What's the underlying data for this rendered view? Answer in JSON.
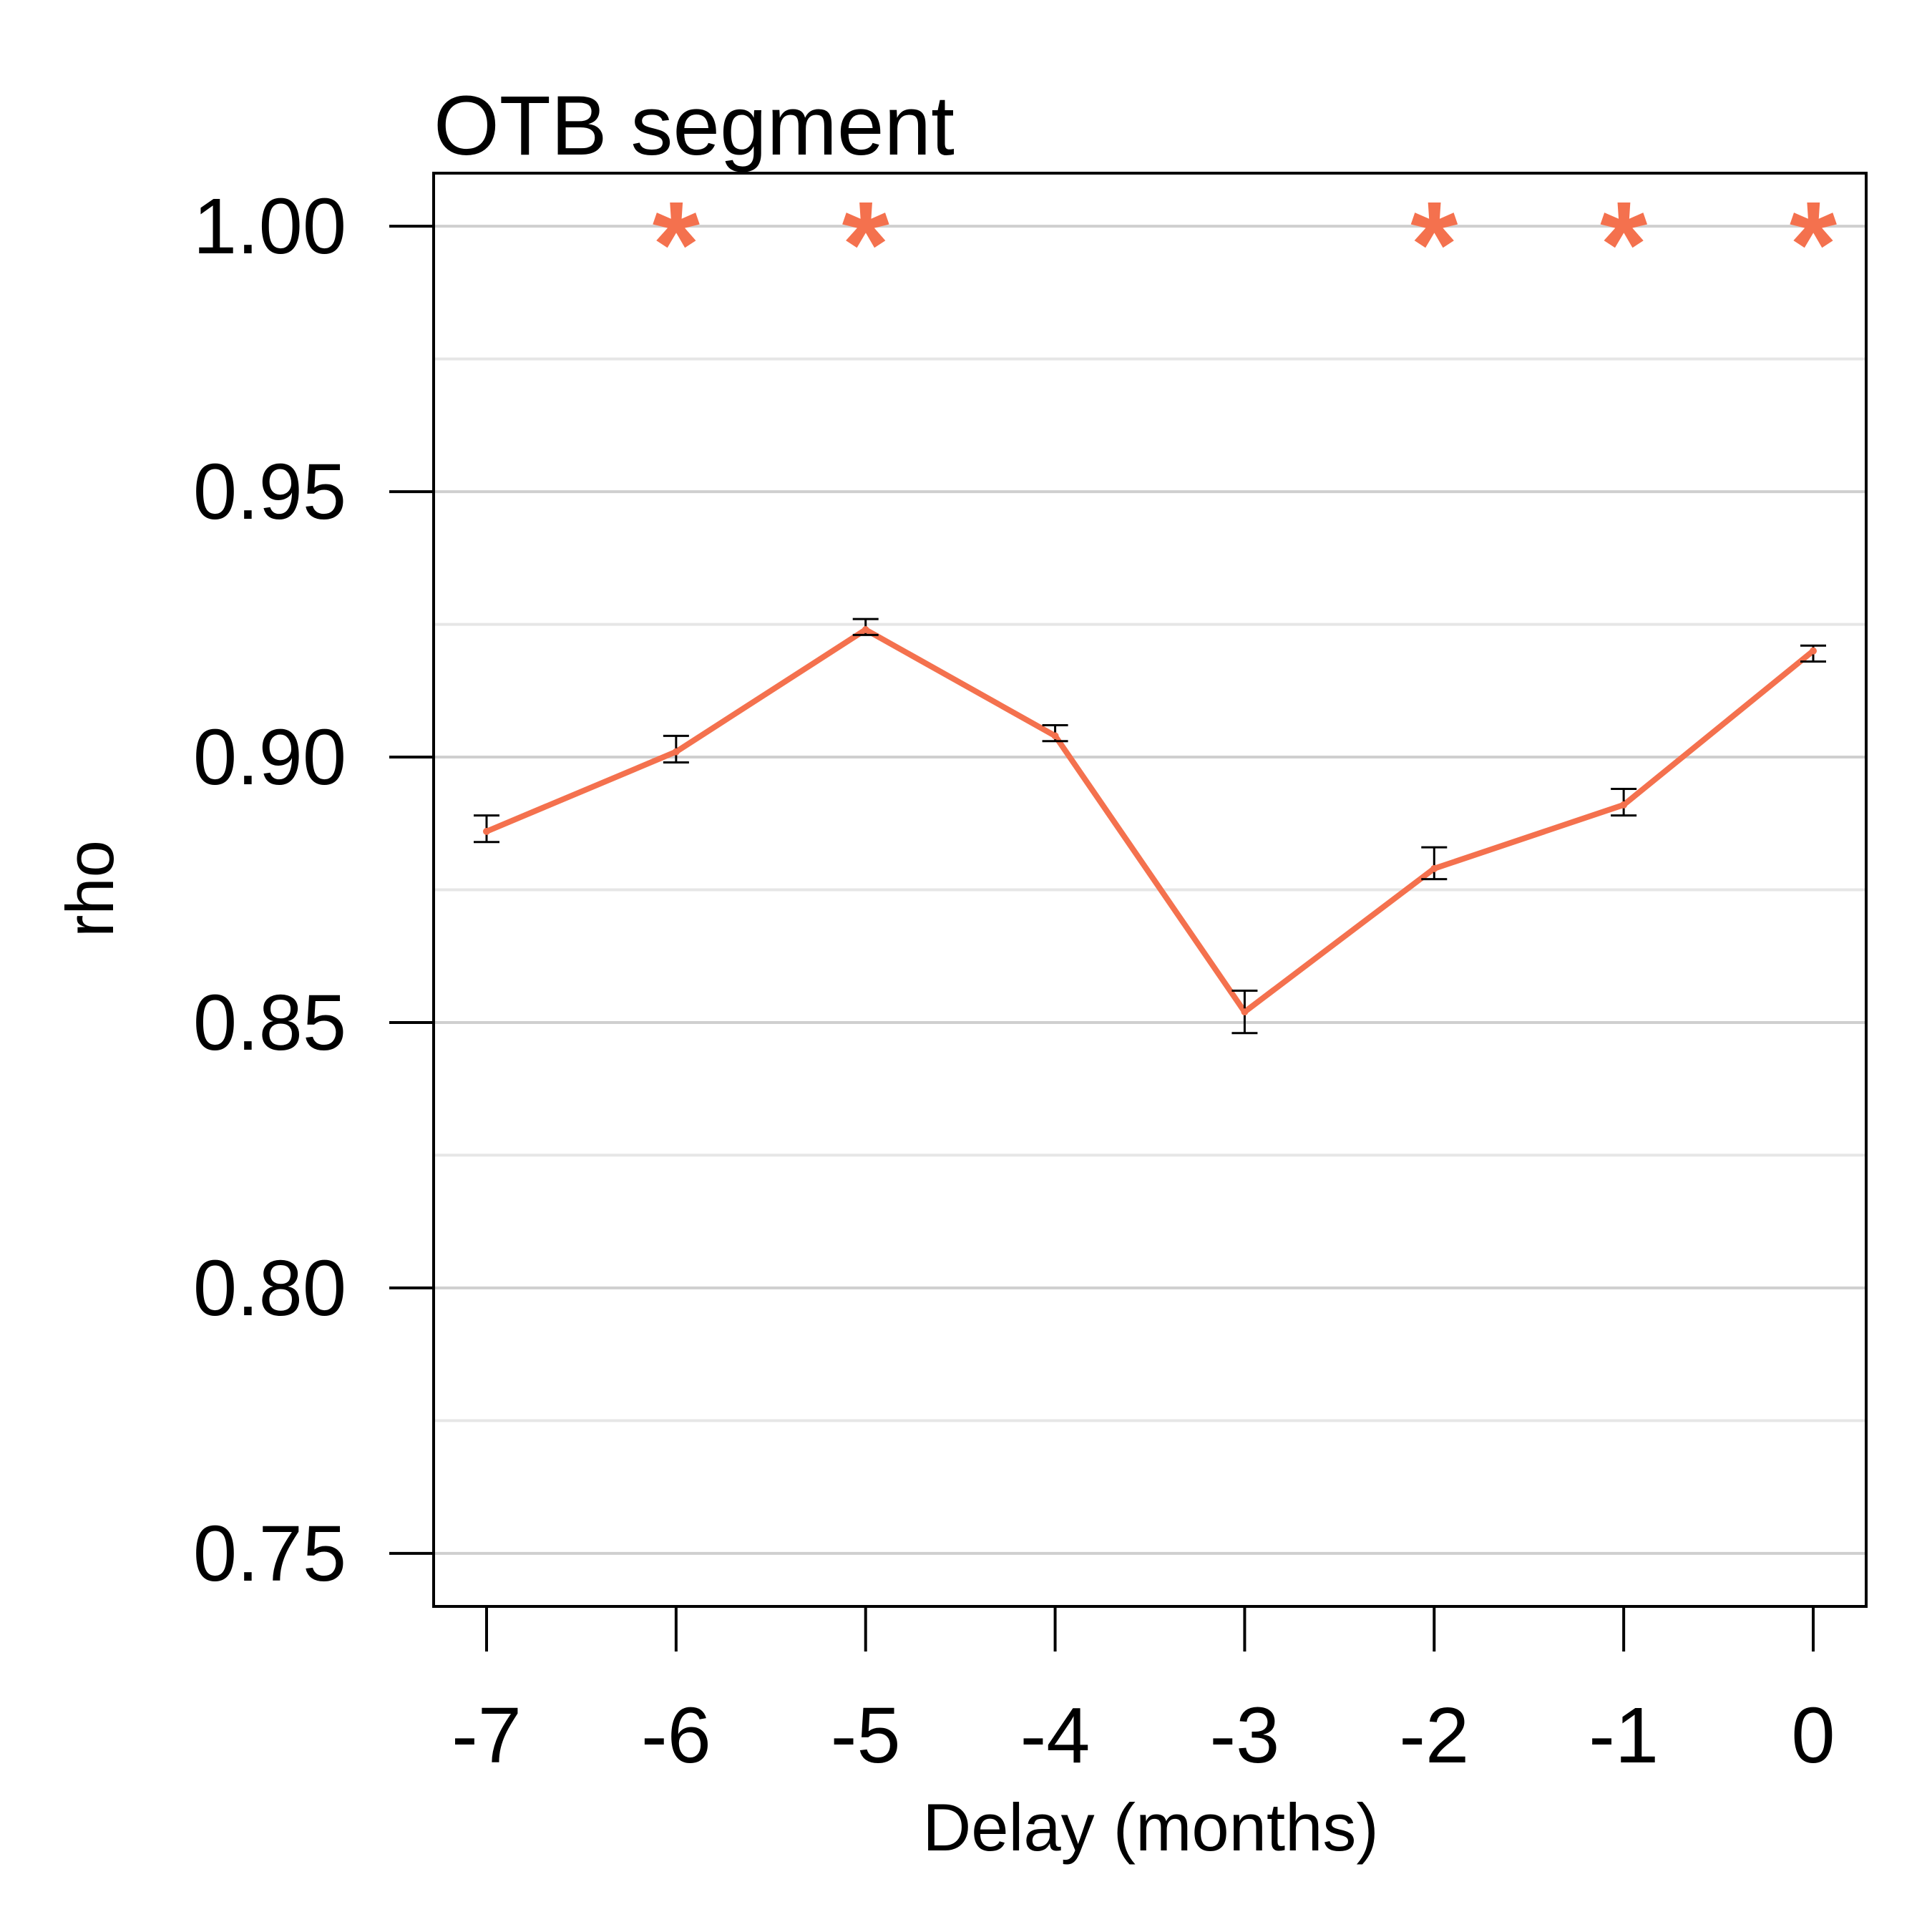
{
  "chart_data": {
    "type": "line",
    "title": "OTB segment",
    "xlabel": "Delay (months)",
    "ylabel": "rho",
    "x": [
      -7,
      -6,
      -5,
      -4,
      -3,
      -2,
      -1,
      0
    ],
    "x_tick_labels": [
      "-7",
      "-6",
      "-5",
      "-4",
      "-3",
      "-2",
      "-1",
      "0"
    ],
    "ylim": [
      0.74,
      1.01
    ],
    "y_ticks": [
      0.75,
      0.8,
      0.85,
      0.9,
      0.95,
      1.0
    ],
    "y_tick_labels": [
      "0.75",
      "0.80",
      "0.85",
      "0.90",
      "0.95",
      "1.00"
    ],
    "y_minor_gridlines": [
      0.775,
      0.825,
      0.875,
      0.925,
      0.975
    ],
    "grid": "horizontal",
    "series": [
      {
        "color": "#f4714e",
        "values": [
          0.886,
          0.901,
          0.924,
          0.904,
          0.852,
          0.879,
          0.891,
          0.92
        ],
        "error_low": [
          0.884,
          0.899,
          0.923,
          0.903,
          0.848,
          0.877,
          0.889,
          0.918
        ],
        "error_high": [
          0.889,
          0.904,
          0.926,
          0.906,
          0.856,
          0.883,
          0.894,
          0.921
        ]
      }
    ],
    "significance_markers": {
      "symbol": "*",
      "color": "#f4714e",
      "x": [
        -6,
        -5,
        -2,
        -1,
        0
      ]
    }
  }
}
